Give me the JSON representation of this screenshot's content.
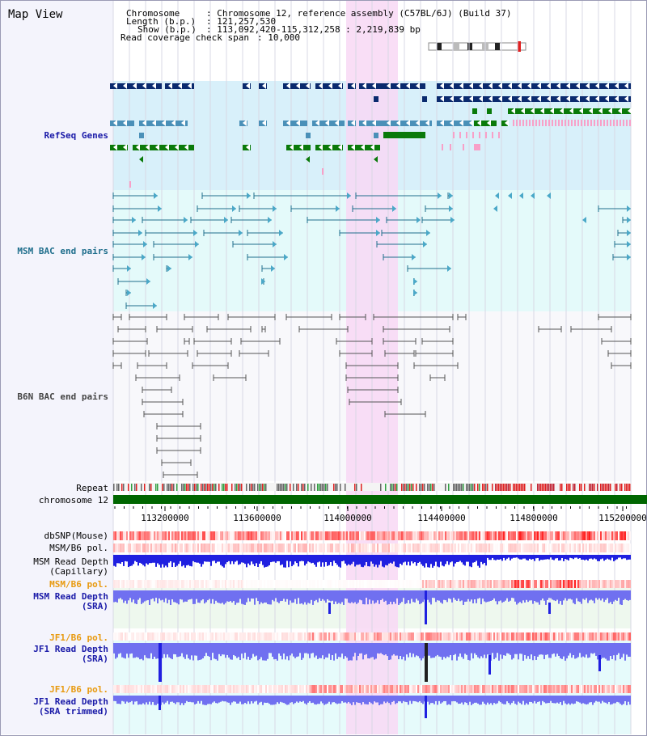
{
  "app_title": "Map View",
  "header": {
    "chromosome_label": "Chromosome",
    "chromosome_value": ": Chromosome 12, reference assembly (C57BL/6J) (Build 37)",
    "length_label": "Length (b.p.)",
    "length_value": ": 121,257,530",
    "show_label": "Show (b.p.)",
    "show_value": ": 113,092,420-115,312,258 : 2,219,839 bp",
    "coverage_label": "Read coverage check span",
    "coverage_value": ": 10,000"
  },
  "tracks": {
    "refseq": "RefSeq Genes",
    "msm_bac": "MSM BAC end pairs",
    "b6n_bac": "B6N BAC end pairs",
    "repeat": "Repeat",
    "chromosome": "chromosome 12",
    "dbsnp": "dbSNP(Mouse)",
    "msm_pol1": "MSM/B6 pol.",
    "msm_depth_cap_1": "MSM Read Depth",
    "msm_depth_cap_2": "(Capillary)",
    "msm_pol2": "MSM/B6 pol.",
    "msm_depth_sra_1": "MSM Read Depth",
    "msm_depth_sra_2": "(SRA)",
    "jf1_pol1": "JF1/B6 pol.",
    "jf1_depth_sra_1": "JF1 Read Depth",
    "jf1_depth_sra_2": "(SRA)",
    "jf1_pol2": "JF1/B6 pol.",
    "jf1_depth_tr_1": "JF1 Read Depth",
    "jf1_depth_tr_2": "(SRA trimmed)"
  },
  "axis": {
    "ticks": [
      "113200000",
      "113600000",
      "114000000",
      "114400000",
      "114800000",
      "115200000"
    ]
  },
  "colors": {
    "refseq_bg": "#d8f0fa",
    "msm_bac_bg": "#e4fafa",
    "b6n_bac_bg": "#f8f8fb",
    "highlight": "#f8d8f4",
    "gene_navy": "#0a2a6e",
    "gene_green": "#0a7a0a",
    "gene_steel": "#4a90b8",
    "msm_line": "#1f6e8c",
    "b6n_line": "#555555",
    "chrom_green": "#006600",
    "depth_blue": "#2020e0",
    "depth_light": "#7070f0"
  }
}
